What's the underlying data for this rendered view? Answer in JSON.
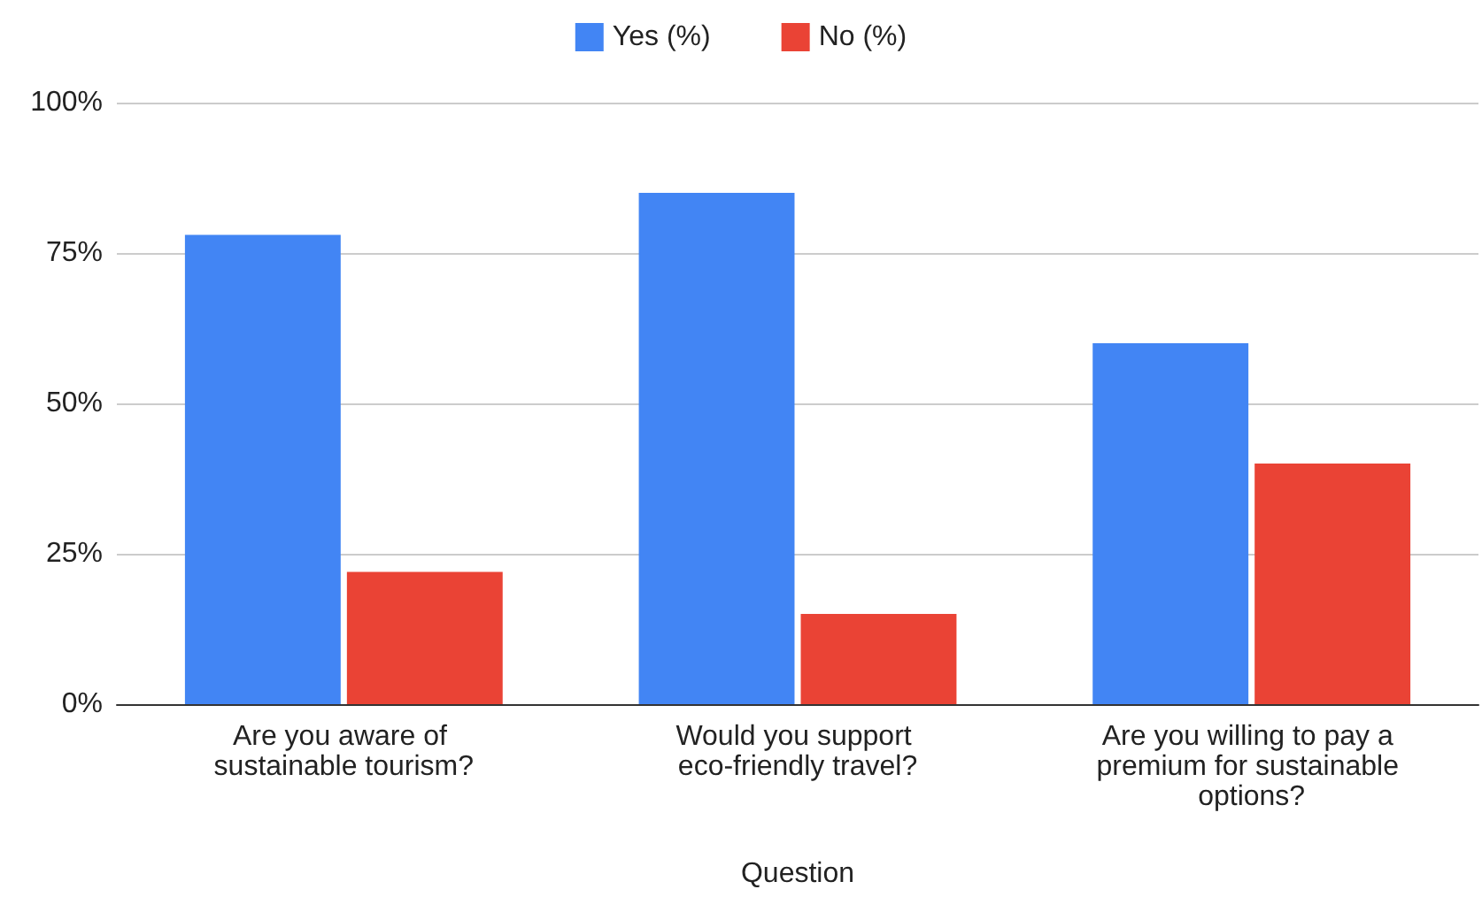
{
  "chart_data": {
    "type": "bar",
    "xlabel": "Question",
    "categories": [
      "Are you aware of sustainable tourism?",
      "Would you support eco-friendly travel?",
      "Are you willing to pay a premium for sustainable options?"
    ],
    "series": [
      {
        "name": "Yes (%)",
        "color": "#4285f4",
        "values": [
          78,
          85,
          60
        ]
      },
      {
        "name": "No (%)",
        "color": "#ea4335",
        "values": [
          22,
          15,
          40
        ]
      }
    ],
    "ylim": [
      0,
      100
    ],
    "yticks": [
      {
        "value": 0,
        "label": "0%"
      },
      {
        "value": 25,
        "label": "25%"
      },
      {
        "value": 50,
        "label": "50%"
      },
      {
        "value": 75,
        "label": "75%"
      },
      {
        "value": 100,
        "label": "100%"
      }
    ],
    "grid": "y",
    "legend": "top"
  }
}
